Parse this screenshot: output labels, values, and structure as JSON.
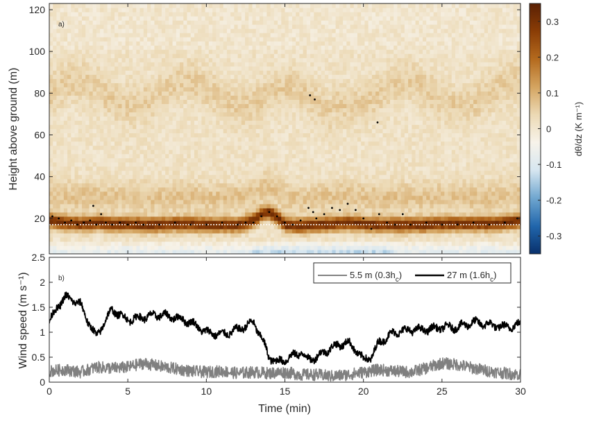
{
  "chart_data": [
    {
      "panel": "a)",
      "type": "heatmap",
      "xlabel": "",
      "ylabel": "Height above ground (m)",
      "xlim": [
        0,
        30
      ],
      "ylim": [
        3,
        123
      ],
      "xticks": [
        0,
        5,
        10,
        15,
        20,
        25,
        30
      ],
      "yticks": [
        20,
        40,
        60,
        80,
        100,
        120
      ],
      "colorbar": {
        "label": "dθ/dz (K m⁻¹)",
        "range": [
          -0.35,
          0.35
        ],
        "ticks": [
          "0.3",
          "0.2",
          "0.1",
          "0",
          "-0.1",
          "-0.2",
          "-0.3"
        ],
        "tick_values": [
          0.3,
          0.2,
          0.1,
          0,
          -0.1,
          -0.2,
          -0.3
        ],
        "colormap": [
          "#08306b",
          "#2166ac",
          "#6fa6cf",
          "#d6e6f0",
          "#f7f3ea",
          "#ecd9b4",
          "#d4a460",
          "#b46a1e",
          "#8a3d06",
          "#5a2004"
        ]
      },
      "inversion_profile": {
        "description_of_values": "approximate height (m) of strongest stable layer vs time (min)",
        "t": [
          0,
          1,
          2,
          3,
          4,
          5,
          6,
          7,
          8,
          9,
          10,
          11,
          12,
          13,
          13.5,
          14,
          14.5,
          15,
          16,
          17,
          18,
          19,
          20,
          21,
          22,
          23,
          24,
          25,
          26,
          27,
          28,
          29,
          30
        ],
        "z": [
          19,
          18,
          17.5,
          18,
          17.5,
          17.5,
          17,
          17,
          17.5,
          17.5,
          17,
          17,
          17,
          19,
          22,
          23,
          21,
          17,
          16.5,
          17,
          17.5,
          18,
          17.5,
          17,
          17,
          17,
          17,
          17.5,
          17.5,
          17.5,
          17.5,
          18,
          19
        ]
      },
      "reference_line": {
        "z": 17,
        "style": "white dotted"
      },
      "points": {
        "t": [
          0.2,
          0.6,
          1.0,
          1.4,
          1.8,
          2.2,
          2.6,
          2.8,
          3.0,
          3.3,
          3.6,
          4.0,
          4.5,
          5.0,
          5.5,
          6.0,
          7.0,
          8.0,
          9.0,
          10.0,
          11.0,
          12.0,
          12.5,
          13.0,
          13.5,
          14.0,
          14.5,
          15.0,
          15.5,
          16.0,
          16.5,
          16.8,
          17.0,
          17.5,
          18.0,
          18.5,
          19.0,
          19.5,
          20.0,
          20.5,
          21.0,
          21.5,
          22.0,
          22.5,
          23.0,
          24.0,
          25.0,
          26.0,
          27.0,
          28.0,
          29.0,
          29.8,
          16.6,
          16.9,
          20.9
        ],
        "z": [
          21,
          20,
          18,
          19,
          17,
          18,
          19,
          26,
          17,
          22,
          18,
          17,
          18,
          17,
          18,
          17,
          17,
          18,
          17,
          17,
          18,
          17,
          18,
          18,
          21,
          23,
          21,
          18,
          17,
          19,
          25,
          23,
          20,
          22,
          25,
          24,
          27,
          24,
          20,
          15,
          22,
          18,
          17,
          22,
          17,
          18,
          17,
          17,
          18,
          17,
          18,
          20,
          79,
          77,
          66
        ]
      }
    },
    {
      "panel": "b)",
      "type": "line",
      "xlabel": "Time (min)",
      "ylabel": "Wind speed (m s⁻¹)",
      "xlim": [
        0,
        30
      ],
      "ylim": [
        0,
        2.5
      ],
      "xticks": [
        0,
        5,
        10,
        15,
        20,
        25,
        30
      ],
      "yticks": [
        0,
        0.5,
        1,
        1.5,
        2,
        2.5
      ],
      "ytick_labels": [
        "0",
        "0.5",
        "1",
        "1.5",
        "2",
        "2.5"
      ],
      "legend_position": "top-right",
      "series": [
        {
          "name": "5.5 m (0.3hᴄ)",
          "name_main": "5.5 m (0.3h",
          "name_sub": "c",
          "name_tail": ")",
          "color": "#808080",
          "x": [
            0,
            1,
            2,
            3,
            4,
            5,
            6,
            7,
            8,
            9,
            10,
            11,
            12,
            13,
            14,
            15,
            16,
            17,
            18,
            19,
            20,
            21,
            22,
            23,
            24,
            25,
            26,
            27,
            28,
            29,
            30
          ],
          "y": [
            0.22,
            0.25,
            0.2,
            0.3,
            0.28,
            0.3,
            0.38,
            0.32,
            0.27,
            0.22,
            0.2,
            0.22,
            0.18,
            0.2,
            0.18,
            0.2,
            0.15,
            0.15,
            0.12,
            0.15,
            0.2,
            0.25,
            0.22,
            0.2,
            0.28,
            0.38,
            0.35,
            0.28,
            0.22,
            0.18,
            0.15
          ],
          "noise": 0.12
        },
        {
          "name": "27 m (1.6hᴄ)",
          "name_main": "27 m (1.6h",
          "name_sub": "c",
          "name_tail": ")",
          "color": "#000000",
          "x": [
            0,
            0.5,
            1,
            1.5,
            2,
            2.5,
            3,
            3.5,
            4,
            4.5,
            5,
            6,
            7,
            8,
            9,
            10,
            11,
            12,
            13,
            13.5,
            14,
            14.5,
            15,
            16,
            16.5,
            17,
            18,
            19,
            19.5,
            20,
            20.5,
            21,
            22,
            23,
            24,
            25,
            26,
            27,
            28,
            29,
            30
          ],
          "y": [
            1.2,
            1.5,
            1.7,
            1.65,
            1.55,
            1.2,
            0.9,
            1.2,
            1.45,
            1.35,
            1.25,
            1.3,
            1.35,
            1.3,
            1.2,
            1.0,
            0.95,
            1.05,
            1.2,
            0.9,
            0.5,
            0.4,
            0.45,
            0.6,
            0.45,
            0.5,
            0.7,
            0.8,
            0.65,
            0.45,
            0.5,
            0.8,
            1.0,
            1.05,
            1.05,
            1.1,
            1.1,
            1.2,
            1.15,
            1.1,
            1.15
          ],
          "noise": 0.1
        }
      ]
    }
  ]
}
